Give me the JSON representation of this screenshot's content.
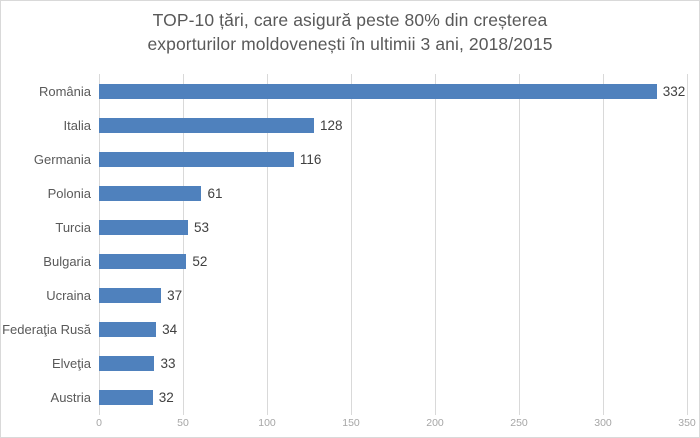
{
  "title": {
    "line1": "TOP-10 țări, care asigură peste 80% din creșterea",
    "line2": "exporturilor moldovenești în ultimii 3 ani, 2018/2015"
  },
  "chart_data": {
    "type": "bar",
    "orientation": "horizontal",
    "title": "TOP-10 țări, care asigură peste 80% din creșterea exporturilor moldovenești în ultimii 3 ani, 2018/2015",
    "categories": [
      "România",
      "Italia",
      "Germania",
      "Polonia",
      "Turcia",
      "Bulgaria",
      "Ucraina",
      "Federaţia Rusă",
      "Elveţia",
      "Austria"
    ],
    "values": [
      332,
      128,
      116,
      61,
      53,
      52,
      37,
      34,
      33,
      32
    ],
    "xlabel": "",
    "ylabel": "",
    "xlim": [
      0,
      350
    ],
    "xticks": [
      0,
      50,
      100,
      150,
      200,
      250,
      300,
      350
    ],
    "grid": "vertical",
    "legend": "none",
    "data_labels": "outside-end"
  },
  "colors": {
    "bar": "#4f81bd",
    "gridline": "#d9d9d9",
    "border": "#d9d9d9",
    "title_text": "#595959",
    "category_text": "#595959",
    "value_text": "#404040",
    "tick_text": "#a6a6a6",
    "background": "#ffffff"
  }
}
